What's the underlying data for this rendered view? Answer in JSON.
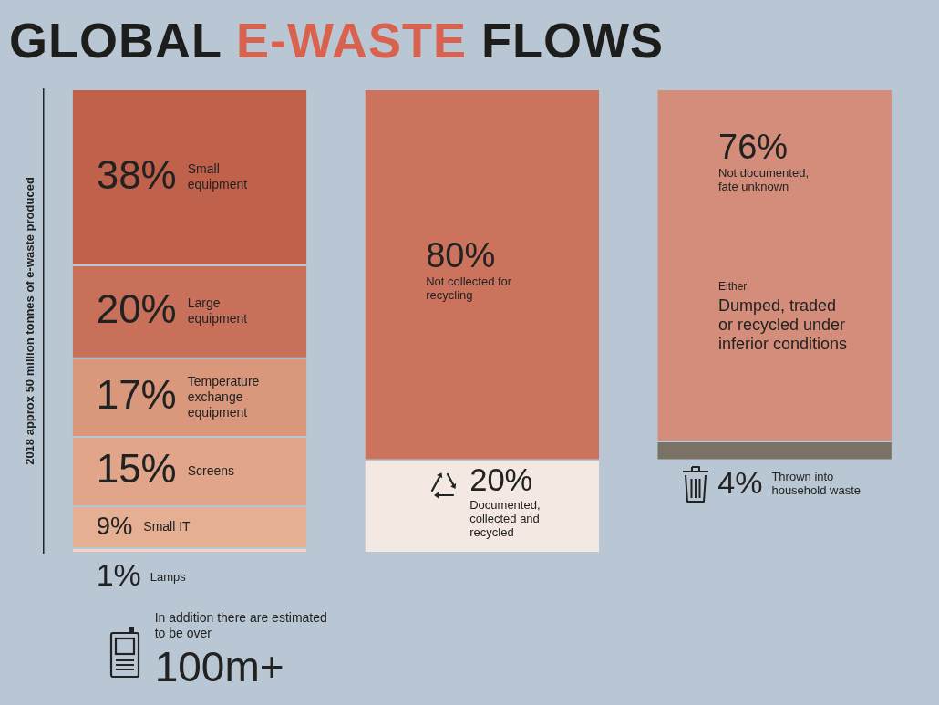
{
  "chart_data": {
    "type": "other",
    "title": "GLOBAL E-WASTE FLOWS",
    "ylabel": "2018 approx 50 million tonnes of e-waste produced",
    "categories": [
      "Small equipment",
      "Large equipment",
      "Temperature exchange equipment",
      "Screens",
      "Small IT",
      "Lamps",
      "Not collected for recycling",
      "Documented, collected and recycled",
      "Not documented, fate unknown",
      "Thrown into household waste"
    ],
    "series": [
      {
        "values": [
          38,
          20,
          17,
          15,
          9,
          1,
          null,
          null,
          null,
          null
        ],
        "colors": [
          "#c0614b",
          "#c9705a",
          "#d9977b",
          "#e1a68a",
          "#e5af94",
          "#f2d3c5",
          null,
          null,
          null,
          null
        ],
        "value_labels": [
          "38%",
          "20%",
          "17%",
          "15%",
          "9%",
          "1%",
          null,
          null,
          null,
          null
        ]
      },
      {
        "values": [
          null,
          null,
          null,
          null,
          null,
          null,
          80,
          20,
          null,
          null
        ],
        "colors": [
          null,
          null,
          null,
          null,
          null,
          null,
          "#cc735e",
          "#f3e9e2",
          null,
          null
        ],
        "value_labels": [
          null,
          null,
          null,
          null,
          null,
          null,
          "80%",
          "20%",
          null,
          null
        ]
      },
      {
        "values": [
          null,
          null,
          null,
          null,
          null,
          null,
          null,
          null,
          76,
          4
        ],
        "colors": [
          null,
          null,
          null,
          null,
          null,
          null,
          null,
          null,
          "#d48d7b",
          "#7a7264"
        ],
        "value_labels": [
          null,
          null,
          null,
          null,
          null,
          null,
          null,
          null,
          "76%",
          "4%"
        ]
      }
    ],
    "annotations": [
      "Either",
      "Dumped, traded or recycled under inferior conditions",
      "In addition there are estimated to be over",
      "100m+"
    ]
  }
}
